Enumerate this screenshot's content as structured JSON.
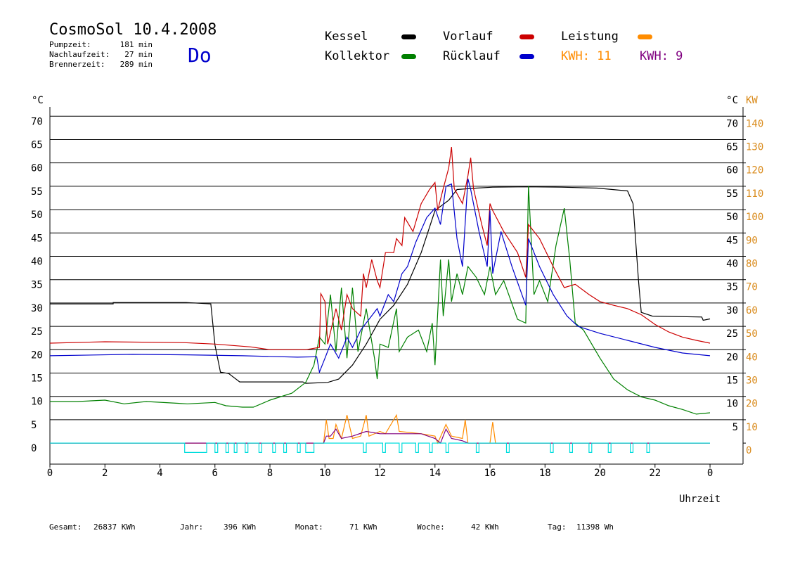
{
  "chart_data": {
    "type": "line",
    "title": "CosmoSol 10.4.2008",
    "weekday": "Do",
    "info": [
      {
        "label": "Pumpzeit:",
        "value": "181 min"
      },
      {
        "label": "Nachlaufzeit:",
        "value": "27 min"
      },
      {
        "label": "Brennerzeit:",
        "value": "289 min"
      }
    ],
    "annotations": [
      {
        "text": "KWH: 11",
        "color": "#ff8c00"
      },
      {
        "text": "KWH: 9",
        "color": "#800080"
      }
    ],
    "x_label": "Uhrzeit",
    "y_label": "°C",
    "y2_labels": [
      "°C",
      "KW"
    ],
    "footer": [
      {
        "label": "Gesamt:",
        "value": "26837 KWh"
      },
      {
        "label": "Jahr:",
        "value": "396 KWh"
      },
      {
        "label": "Monat:",
        "value": "71 KWh"
      },
      {
        "label": "Woche:",
        "value": "42 KWh"
      },
      {
        "label": "Tag:",
        "value": "11398 Wh"
      }
    ],
    "xlim": [
      0,
      25.2
    ],
    "xticks": [
      0,
      2,
      4,
      6,
      8,
      10,
      12,
      14,
      16,
      18,
      20,
      22,
      {
        "value": 24,
        "label": "0"
      }
    ],
    "ylim": [
      -4.5,
      72
    ],
    "yticks": [
      0,
      5,
      10,
      15,
      20,
      25,
      30,
      35,
      40,
      45,
      50,
      55,
      60,
      65,
      70
    ],
    "y2lim": [
      -9,
      144
    ],
    "y2ticks": [
      0,
      10,
      20,
      30,
      40,
      50,
      60,
      70,
      80,
      90,
      100,
      110,
      120,
      130,
      140
    ],
    "y2color": "#d98a1a",
    "grid": true,
    "series": [
      {
        "name": "Kessel",
        "color": "#000000",
        "x": [
          0,
          2.3,
          2.3,
          4.95,
          5.85,
          6.0,
          6.2,
          6.5,
          6.9,
          9.2,
          9.3,
          10.1,
          10.5,
          11,
          11.5,
          12,
          12.5,
          13,
          13.5,
          14,
          14.5,
          14.8,
          15.5,
          16.1,
          17.3,
          18.6,
          19.9,
          21,
          21.2,
          21.4,
          21.5,
          21.9,
          23.7,
          23.75,
          24
        ],
        "values": [
          29.8,
          29.8,
          30.1,
          30.1,
          29.8,
          21,
          15.2,
          14.9,
          13.1,
          13.1,
          12.8,
          13,
          13.7,
          16.7,
          21.2,
          26.5,
          29.5,
          34,
          40.8,
          49.8,
          52,
          54.3,
          54.6,
          54.8,
          54.9,
          54.8,
          54.6,
          54,
          51.3,
          34.8,
          28,
          27.2,
          27,
          26.3,
          26.6
        ]
      },
      {
        "name": "Kollektor",
        "color": "#008000",
        "x": [
          0,
          1,
          2,
          2.7,
          3.5,
          5,
          6,
          6.4,
          7,
          7.4,
          8,
          8.8,
          9.3,
          9.6,
          9.8,
          10,
          10.2,
          10.4,
          10.6,
          10.8,
          11,
          11.2,
          11.5,
          11.8,
          11.9,
          12,
          12.3,
          12.6,
          12.7,
          13,
          13.4,
          13.7,
          13.9,
          14,
          14.2,
          14.3,
          14.5,
          14.6,
          14.8,
          15,
          15.2,
          15.5,
          15.8,
          16,
          16.2,
          16.5,
          17,
          17.3,
          17.4,
          17.6,
          17.8,
          18.1,
          18.4,
          18.7,
          18.9,
          19.1,
          19.4,
          20,
          20.5,
          21,
          21.5,
          22,
          22.5,
          23,
          23.5,
          24
        ],
        "values": [
          8.9,
          8.9,
          9.2,
          8.4,
          8.9,
          8.4,
          8.7,
          8,
          7.7,
          7.7,
          9.2,
          10.7,
          13,
          16.7,
          22.7,
          21.2,
          31.8,
          19.6,
          33.3,
          18.2,
          33.3,
          19.6,
          28.8,
          18.2,
          13.7,
          21.2,
          20.5,
          28.8,
          19.6,
          22.7,
          24.2,
          19.6,
          25.7,
          16.7,
          39.3,
          27.2,
          39.3,
          30.3,
          36.3,
          31.8,
          37.8,
          35.5,
          31.8,
          37.8,
          31.8,
          34.8,
          26.5,
          25.7,
          55.1,
          31.8,
          34.8,
          30.3,
          42.3,
          50.3,
          39.3,
          25.7,
          24.2,
          18.2,
          13.7,
          11.4,
          9.9,
          9.2,
          8,
          7.2,
          6.2,
          6.5
        ]
      },
      {
        "name": "Vorlauf",
        "color": "#cc0000",
        "x": [
          0,
          2,
          4.9,
          6,
          7.3,
          8,
          9.3,
          9.8,
          9.85,
          10,
          10.1,
          10.4,
          10.6,
          10.8,
          11,
          11.3,
          11.4,
          11.5,
          11.7,
          11.9,
          12,
          12.2,
          12.5,
          12.6,
          12.8,
          12.9,
          13.2,
          13.5,
          13.8,
          14,
          14.1,
          14.3,
          14.5,
          14.6,
          14.7,
          15,
          15.2,
          15.3,
          15.4,
          15.7,
          15.9,
          16,
          16.1,
          16.5,
          17,
          17.3,
          17.4,
          17.8,
          18.3,
          18.7,
          19.1,
          19.6,
          20,
          20.5,
          21,
          21.5,
          22,
          22.5,
          23,
          23.5,
          24
        ],
        "values": [
          21.4,
          21.7,
          21.5,
          21.2,
          20.6,
          20,
          20,
          20.5,
          32,
          30.3,
          21.2,
          28.8,
          24.2,
          31.8,
          28.8,
          27.2,
          36.3,
          33.3,
          39.3,
          34.8,
          33.3,
          40.8,
          40.8,
          43.8,
          42.3,
          48.3,
          45.3,
          51.3,
          54.3,
          55.8,
          49.8,
          54.5,
          58.9,
          63.4,
          54.5,
          51.3,
          57.3,
          61.1,
          54.5,
          46.8,
          42.3,
          51.3,
          49.8,
          45.3,
          40.8,
          35.5,
          46.8,
          43.8,
          37.8,
          33.3,
          34,
          31.8,
          30.3,
          29.5,
          28.8,
          27.5,
          25.4,
          23.8,
          22.7,
          22,
          21.4
        ]
      },
      {
        "name": "Rücklauf",
        "color": "#0000cc",
        "x": [
          0,
          3,
          5,
          7,
          9,
          9.7,
          9.8,
          10,
          10.2,
          10.5,
          10.8,
          11,
          11.3,
          11.6,
          11.9,
          12,
          12.3,
          12.5,
          12.8,
          13,
          13.3,
          13.7,
          14,
          14.2,
          14.4,
          14.6,
          14.8,
          15,
          15.2,
          15.3,
          15.6,
          15.9,
          16,
          16.1,
          16.4,
          16.8,
          17.3,
          17.4,
          17.8,
          18.3,
          18.8,
          19.2,
          20,
          21,
          22,
          23,
          24
        ],
        "values": [
          18.7,
          19,
          18.9,
          18.7,
          18.4,
          18.5,
          15.2,
          18.2,
          21.2,
          18.2,
          22.7,
          20.5,
          24.2,
          26.5,
          28.8,
          27.2,
          31.8,
          30.3,
          36.3,
          37.8,
          43,
          48.3,
          50.3,
          46.8,
          55,
          55.5,
          43.8,
          37.8,
          56.6,
          54.3,
          45.3,
          37.8,
          49.8,
          36.3,
          45.3,
          37.8,
          29.5,
          43.8,
          37.8,
          31.8,
          27.2,
          25,
          23.5,
          22,
          20.5,
          19.3,
          18.7
        ]
      },
      {
        "name": "Leistung",
        "color": "#ff8c00",
        "axis": "y2",
        "x": [
          0,
          9.95,
          10.05,
          10.15,
          10.3,
          10.4,
          10.6,
          10.8,
          11,
          11.3,
          11.5,
          11.6,
          12,
          12.2,
          12.6,
          12.7,
          13.5,
          14,
          14.1,
          14.4,
          14.6,
          15,
          15.1,
          15.2,
          16,
          16.1,
          16.2,
          24
        ],
        "values": [
          0,
          0,
          10,
          2,
          2,
          8,
          2,
          12,
          2,
          3,
          12,
          3,
          5,
          4,
          12,
          5,
          4,
          3,
          0,
          8,
          3,
          2,
          10,
          0,
          0,
          9,
          0,
          0
        ]
      },
      {
        "color": "#800080",
        "axis": "y2",
        "x": [
          0,
          9.95,
          10.05,
          10.2,
          10.4,
          10.6,
          11,
          11.5,
          12,
          12.5,
          13,
          13.5,
          14,
          14.2,
          14.4,
          14.6,
          15,
          15.2,
          24
        ],
        "values": [
          0,
          0,
          3,
          3,
          6,
          2,
          3,
          5,
          4,
          4,
          4,
          4,
          2,
          0,
          6,
          2,
          1,
          0,
          0
        ]
      },
      {
        "color": "#00dddd",
        "x": [
          0,
          4.9,
          4.9,
          5.7,
          5.7,
          6.0,
          6.0,
          6.1,
          6.1,
          6.4,
          6.4,
          6.5,
          6.5,
          6.7,
          6.7,
          6.8,
          6.8,
          7.1,
          7.1,
          7.2,
          7.2,
          7.6,
          7.6,
          7.7,
          7.7,
          8.1,
          8.1,
          8.2,
          8.2,
          8.5,
          8.5,
          8.6,
          8.6,
          9.0,
          9.0,
          9.1,
          9.1,
          9.3,
          9.3,
          9.6,
          9.6,
          11.4,
          11.4,
          11.5,
          11.5,
          12.1,
          12.1,
          12.2,
          12.2,
          12.7,
          12.7,
          12.8,
          12.8,
          13.3,
          13.3,
          13.4,
          13.4,
          13.8,
          13.8,
          13.9,
          13.9,
          14.4,
          14.4,
          14.5,
          14.5,
          15.5,
          15.5,
          15.6,
          15.6,
          16.6,
          16.6,
          16.7,
          16.7,
          18.2,
          18.2,
          18.3,
          18.3,
          18.9,
          18.9,
          19.0,
          19.0,
          19.6,
          19.6,
          19.7,
          19.7,
          20.3,
          20.3,
          20.4,
          20.4,
          21.1,
          21.1,
          21.2,
          21.2,
          21.7,
          21.7,
          21.8,
          21.8,
          24
        ],
        "values": [
          0,
          0,
          -2,
          -2,
          0,
          0,
          -2,
          -2,
          0,
          0,
          -2,
          -2,
          0,
          0,
          -2,
          -2,
          0,
          0,
          -2,
          -2,
          0,
          0,
          -2,
          -2,
          0,
          0,
          -2,
          -2,
          0,
          0,
          -2,
          -2,
          0,
          0,
          -2,
          -2,
          0,
          0,
          -2,
          -2,
          0,
          0,
          -2,
          -2,
          0,
          0,
          -2,
          -2,
          0,
          0,
          -2,
          -2,
          0,
          0,
          -2,
          -2,
          0,
          0,
          -2,
          -2,
          0,
          0,
          -2,
          -2,
          0,
          0,
          -2,
          -2,
          0,
          0,
          -2,
          -2,
          0,
          0,
          -2,
          -2,
          0,
          0,
          -2,
          -2,
          0,
          0,
          -2,
          -2,
          0,
          0,
          -2,
          -2,
          0,
          0,
          -2,
          -2,
          0,
          0,
          -2,
          -2,
          0,
          0
        ]
      }
    ]
  }
}
